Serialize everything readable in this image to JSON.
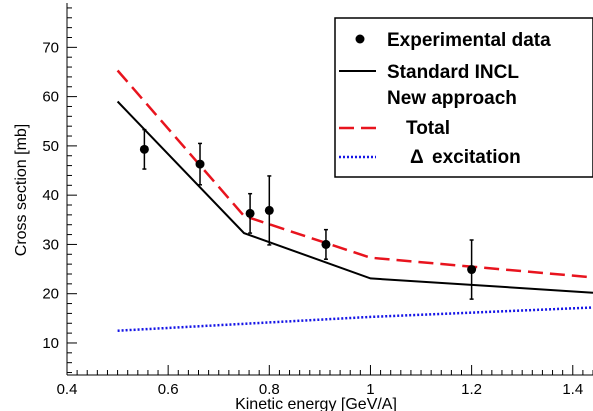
{
  "chart_data": {
    "type": "line",
    "title": "",
    "xlabel": "Kinetic energy [GeV/A]",
    "ylabel": "Cross section [mb]",
    "xlim": [
      0.4,
      1.44
    ],
    "ylim": [
      3.5,
      79
    ],
    "x_ticks": [
      0.4,
      0.6,
      0.8,
      1,
      1.2,
      1.4
    ],
    "x_tick_labels": [
      "0.4",
      "0.6",
      "0.8",
      "1",
      "1.2",
      "1.4"
    ],
    "y_ticks": [
      10,
      20,
      30,
      40,
      50,
      60,
      70
    ],
    "y_tick_labels": [
      "10",
      "20",
      "30",
      "40",
      "50",
      "60",
      "70"
    ],
    "grid": false,
    "legend_position": "top-right",
    "legend": {
      "experimental": "Experimental data",
      "standard": "Standard INCL",
      "heading": "New approach",
      "total": "Total",
      "delta_symbol": "Δ",
      "delta_text": "excitation"
    },
    "colors": {
      "experimental": "#000000",
      "standard": "#000000",
      "total": "#e8141e",
      "delta": "#1414e6"
    },
    "experimental": {
      "name": "Experimental data",
      "x": [
        0.553,
        0.663,
        0.762,
        0.8,
        0.912,
        1.2
      ],
      "y": [
        49.3,
        46.3,
        36.3,
        36.9,
        30.0,
        24.9
      ],
      "err": [
        4.0,
        4.2,
        4.0,
        7.0,
        3.0,
        6.0
      ]
    },
    "standard": {
      "name": "Standard INCL",
      "x": [
        0.5,
        0.75,
        1.0,
        1.44
      ],
      "y": [
        59.0,
        32.3,
        23.1,
        20.2
      ]
    },
    "total": {
      "name": "Total",
      "x": [
        0.5,
        0.75,
        1.0,
        1.44
      ],
      "y": [
        65.3,
        35.8,
        27.3,
        23.3
      ]
    },
    "delta": {
      "name": "Δ excitation",
      "x": [
        0.5,
        1.0,
        1.44
      ],
      "y": [
        12.5,
        15.3,
        17.2
      ]
    }
  }
}
